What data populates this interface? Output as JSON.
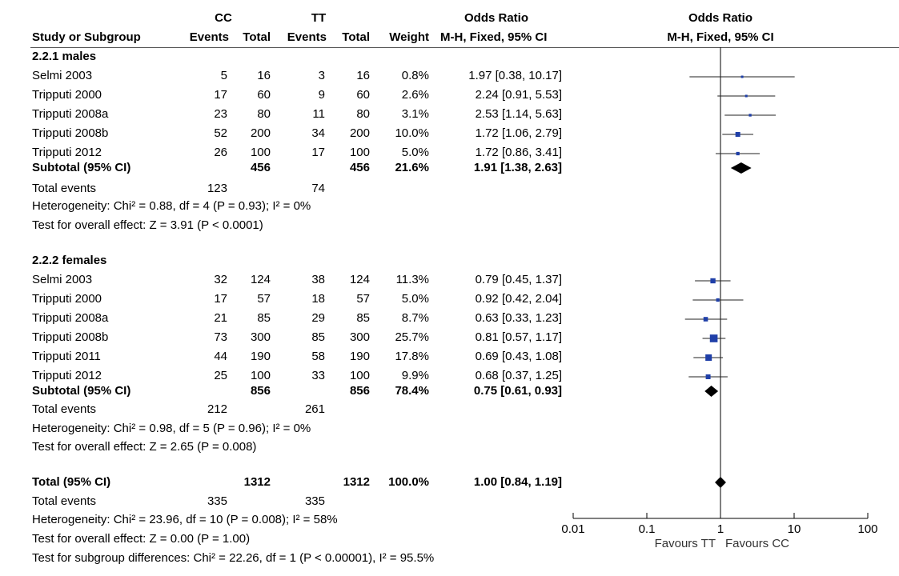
{
  "header": {
    "group1": "CC",
    "group2": "TT",
    "or_title": "Odds Ratio",
    "or_plot_title": "Odds Ratio",
    "col_study": "Study or Subgroup",
    "col_events1": "Events",
    "col_total1": "Total",
    "col_events2": "Events",
    "col_total2": "Total",
    "col_weight": "Weight",
    "col_method": "M-H, Fixed, 95% CI",
    "col_method_plot": "M-H, Fixed, 95% CI"
  },
  "rows": [
    {
      "type": "group",
      "label": "2.2.1 males"
    },
    {
      "type": "study",
      "study": "Selmi 2003",
      "e1": "5",
      "n1": "16",
      "e2": "3",
      "n2": "16",
      "weight": "0.8%",
      "ci": "1.97 [0.38, 10.17]"
    },
    {
      "type": "study",
      "study": "Tripputi 2000",
      "e1": "17",
      "n1": "60",
      "e2": "9",
      "n2": "60",
      "weight": "2.6%",
      "ci": "2.24 [0.91, 5.53]"
    },
    {
      "type": "study",
      "study": "Tripputi 2008a",
      "e1": "23",
      "n1": "80",
      "e2": "11",
      "n2": "80",
      "weight": "3.1%",
      "ci": "2.53 [1.14, 5.63]"
    },
    {
      "type": "study",
      "study": "Tripputi 2008b",
      "e1": "52",
      "n1": "200",
      "e2": "34",
      "n2": "200",
      "weight": "10.0%",
      "ci": "1.72 [1.06, 2.79]"
    },
    {
      "type": "study",
      "study": "Tripputi 2012",
      "e1": "26",
      "n1": "100",
      "e2": "17",
      "n2": "100",
      "weight": "5.0%",
      "ci": "1.72 [0.86, 3.41]"
    },
    {
      "type": "subtotal",
      "study": "Subtotal (95% CI)",
      "n1": "456",
      "n2": "456",
      "weight": "21.6%",
      "ci": "1.91 [1.38, 2.63]"
    },
    {
      "type": "events",
      "study": "Total events",
      "e1": "123",
      "e2": "74"
    },
    {
      "type": "note",
      "text": "Heterogeneity: Chi² = 0.88, df = 4 (P = 0.93); I² = 0%"
    },
    {
      "type": "note",
      "text": "Test for overall effect: Z = 3.91 (P < 0.0001)"
    },
    {
      "type": "group",
      "label": "2.2.2 females"
    },
    {
      "type": "study",
      "study": "Selmi 2003",
      "e1": "32",
      "n1": "124",
      "e2": "38",
      "n2": "124",
      "weight": "11.3%",
      "ci": "0.79 [0.45, 1.37]"
    },
    {
      "type": "study",
      "study": "Tripputi 2000",
      "e1": "17",
      "n1": "57",
      "e2": "18",
      "n2": "57",
      "weight": "5.0%",
      "ci": "0.92 [0.42, 2.04]"
    },
    {
      "type": "study",
      "study": "Tripputi 2008a",
      "e1": "21",
      "n1": "85",
      "e2": "29",
      "n2": "85",
      "weight": "8.7%",
      "ci": "0.63 [0.33, 1.23]"
    },
    {
      "type": "study",
      "study": "Tripputi 2008b",
      "e1": "73",
      "n1": "300",
      "e2": "85",
      "n2": "300",
      "weight": "25.7%",
      "ci": "0.81 [0.57, 1.17]"
    },
    {
      "type": "study",
      "study": "Tripputi 2011",
      "e1": "44",
      "n1": "190",
      "e2": "58",
      "n2": "190",
      "weight": "17.8%",
      "ci": "0.69 [0.43, 1.08]"
    },
    {
      "type": "study",
      "study": "Tripputi 2012",
      "e1": "25",
      "n1": "100",
      "e2": "33",
      "n2": "100",
      "weight": "9.9%",
      "ci": "0.68 [0.37, 1.25]"
    },
    {
      "type": "subtotal",
      "study": "Subtotal (95% CI)",
      "n1": "856",
      "n2": "856",
      "weight": "78.4%",
      "ci": "0.75 [0.61, 0.93]"
    },
    {
      "type": "events",
      "study": "Total events",
      "e1": "212",
      "e2": "261"
    },
    {
      "type": "note",
      "text": "Heterogeneity: Chi² = 0.98, df = 5 (P = 0.96); I² = 0%"
    },
    {
      "type": "note",
      "text": "Test for overall effect: Z = 2.65 (P = 0.008)"
    },
    {
      "type": "total",
      "study": "Total (95% CI)",
      "n1": "1312",
      "n2": "1312",
      "weight": "100.0%",
      "ci": "1.00 [0.84, 1.19]"
    },
    {
      "type": "events",
      "study": "Total events",
      "e1": "335",
      "e2": "335"
    },
    {
      "type": "note",
      "text": "Heterogeneity: Chi² = 23.96, df = 10 (P = 0.008); I² = 58%"
    },
    {
      "type": "note",
      "text": "Test for overall effect: Z = 0.00 (P = 1.00)"
    },
    {
      "type": "note",
      "text": "Test for subgroup differences: Chi² = 22.26, df = 1 (P < 0.00001), I² = 95.5%"
    }
  ],
  "chart_data": {
    "type": "forest",
    "title": "Odds Ratio",
    "subtitle": "M-H, Fixed, 95% CI",
    "xscale": "log",
    "xlim": [
      0.01,
      100
    ],
    "xticks": [
      0.01,
      0.1,
      1,
      10,
      100
    ],
    "xtick_labels": [
      "0.01",
      "0.1",
      "1",
      "10",
      "100"
    ],
    "left_label": "Favours TT",
    "right_label": "Favours CC",
    "null_value": 1,
    "square_color": "#1f3fa8",
    "studies": [
      {
        "group": "2.2.1 males",
        "study": "Selmi 2003",
        "or": 1.97,
        "lo": 0.38,
        "hi": 10.17,
        "weight": 0.8
      },
      {
        "group": "2.2.1 males",
        "study": "Tripputi 2000",
        "or": 2.24,
        "lo": 0.91,
        "hi": 5.53,
        "weight": 2.6
      },
      {
        "group": "2.2.1 males",
        "study": "Tripputi 2008a",
        "or": 2.53,
        "lo": 1.14,
        "hi": 5.63,
        "weight": 3.1
      },
      {
        "group": "2.2.1 males",
        "study": "Tripputi 2008b",
        "or": 1.72,
        "lo": 1.06,
        "hi": 2.79,
        "weight": 10.0
      },
      {
        "group": "2.2.1 males",
        "study": "Tripputi 2012",
        "or": 1.72,
        "lo": 0.86,
        "hi": 3.41,
        "weight": 5.0
      },
      {
        "group": "2.2.2 females",
        "study": "Selmi 2003",
        "or": 0.79,
        "lo": 0.45,
        "hi": 1.37,
        "weight": 11.3
      },
      {
        "group": "2.2.2 females",
        "study": "Tripputi 2000",
        "or": 0.92,
        "lo": 0.42,
        "hi": 2.04,
        "weight": 5.0
      },
      {
        "group": "2.2.2 females",
        "study": "Tripputi 2008a",
        "or": 0.63,
        "lo": 0.33,
        "hi": 1.23,
        "weight": 8.7
      },
      {
        "group": "2.2.2 females",
        "study": "Tripputi 2008b",
        "or": 0.81,
        "lo": 0.57,
        "hi": 1.17,
        "weight": 25.7
      },
      {
        "group": "2.2.2 females",
        "study": "Tripputi 2011",
        "or": 0.69,
        "lo": 0.43,
        "hi": 1.08,
        "weight": 17.8
      },
      {
        "group": "2.2.2 females",
        "study": "Tripputi 2012",
        "or": 0.68,
        "lo": 0.37,
        "hi": 1.25,
        "weight": 9.9
      }
    ],
    "subtotals": [
      {
        "label": "2.2.1 males",
        "or": 1.91,
        "lo": 1.38,
        "hi": 2.63
      },
      {
        "label": "2.2.2 females",
        "or": 0.75,
        "lo": 0.61,
        "hi": 0.93
      }
    ],
    "overall": {
      "or": 1.0,
      "lo": 0.84,
      "hi": 1.19
    }
  }
}
